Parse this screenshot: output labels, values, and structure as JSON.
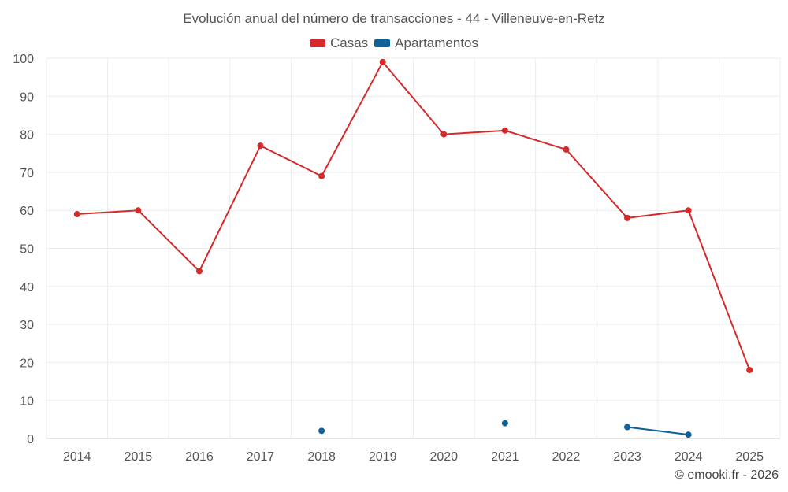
{
  "chart_data": {
    "type": "line",
    "title": "Evolución anual del número de transacciones - 44 - Villeneuve-en-Retz",
    "categories": [
      "2014",
      "2015",
      "2016",
      "2017",
      "2018",
      "2019",
      "2020",
      "2021",
      "2022",
      "2023",
      "2024",
      "2025"
    ],
    "series": [
      {
        "name": "Casas",
        "color": "#d42a2a",
        "values": [
          59,
          60,
          44,
          77,
          69,
          99,
          80,
          81,
          76,
          58,
          60,
          18
        ]
      },
      {
        "name": "Apartamentos",
        "color": "#0e6299",
        "values": [
          null,
          null,
          null,
          null,
          2,
          null,
          null,
          4,
          null,
          3,
          1,
          null
        ]
      }
    ],
    "ylim": [
      0,
      100
    ],
    "yticks": [
      0,
      10,
      20,
      30,
      40,
      50,
      60,
      70,
      80,
      90,
      100
    ],
    "xlabel": "",
    "ylabel": "",
    "grid": true,
    "legend_position": "top-center"
  },
  "credit": "© emooki.fr - 2026"
}
